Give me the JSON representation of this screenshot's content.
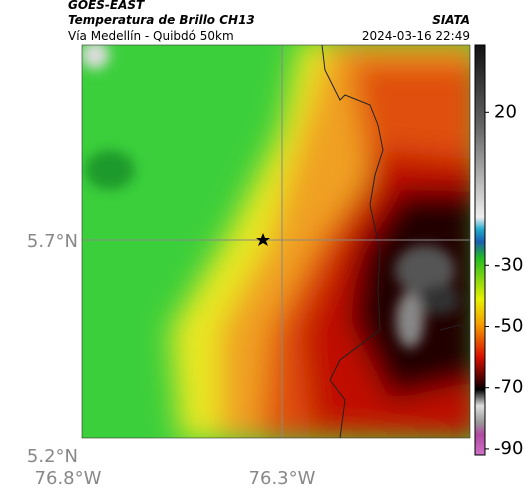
{
  "header": {
    "title": "GOES-EAST",
    "subtitle": "Temperatura de Brillo CH13",
    "location": "Vía Medellín - Quibdó 50km",
    "source": "SIATA",
    "datetime": "2024-03-16 22:49"
  },
  "map": {
    "lat_labels": [
      "5.7°N",
      "5.2°N"
    ],
    "lon_labels": [
      "76.8°W",
      "76.3°W"
    ]
  },
  "colorbar": {
    "range": [
      42,
      -92
    ],
    "ticks": [
      20,
      -30,
      -50,
      -70,
      -90
    ]
  }
}
